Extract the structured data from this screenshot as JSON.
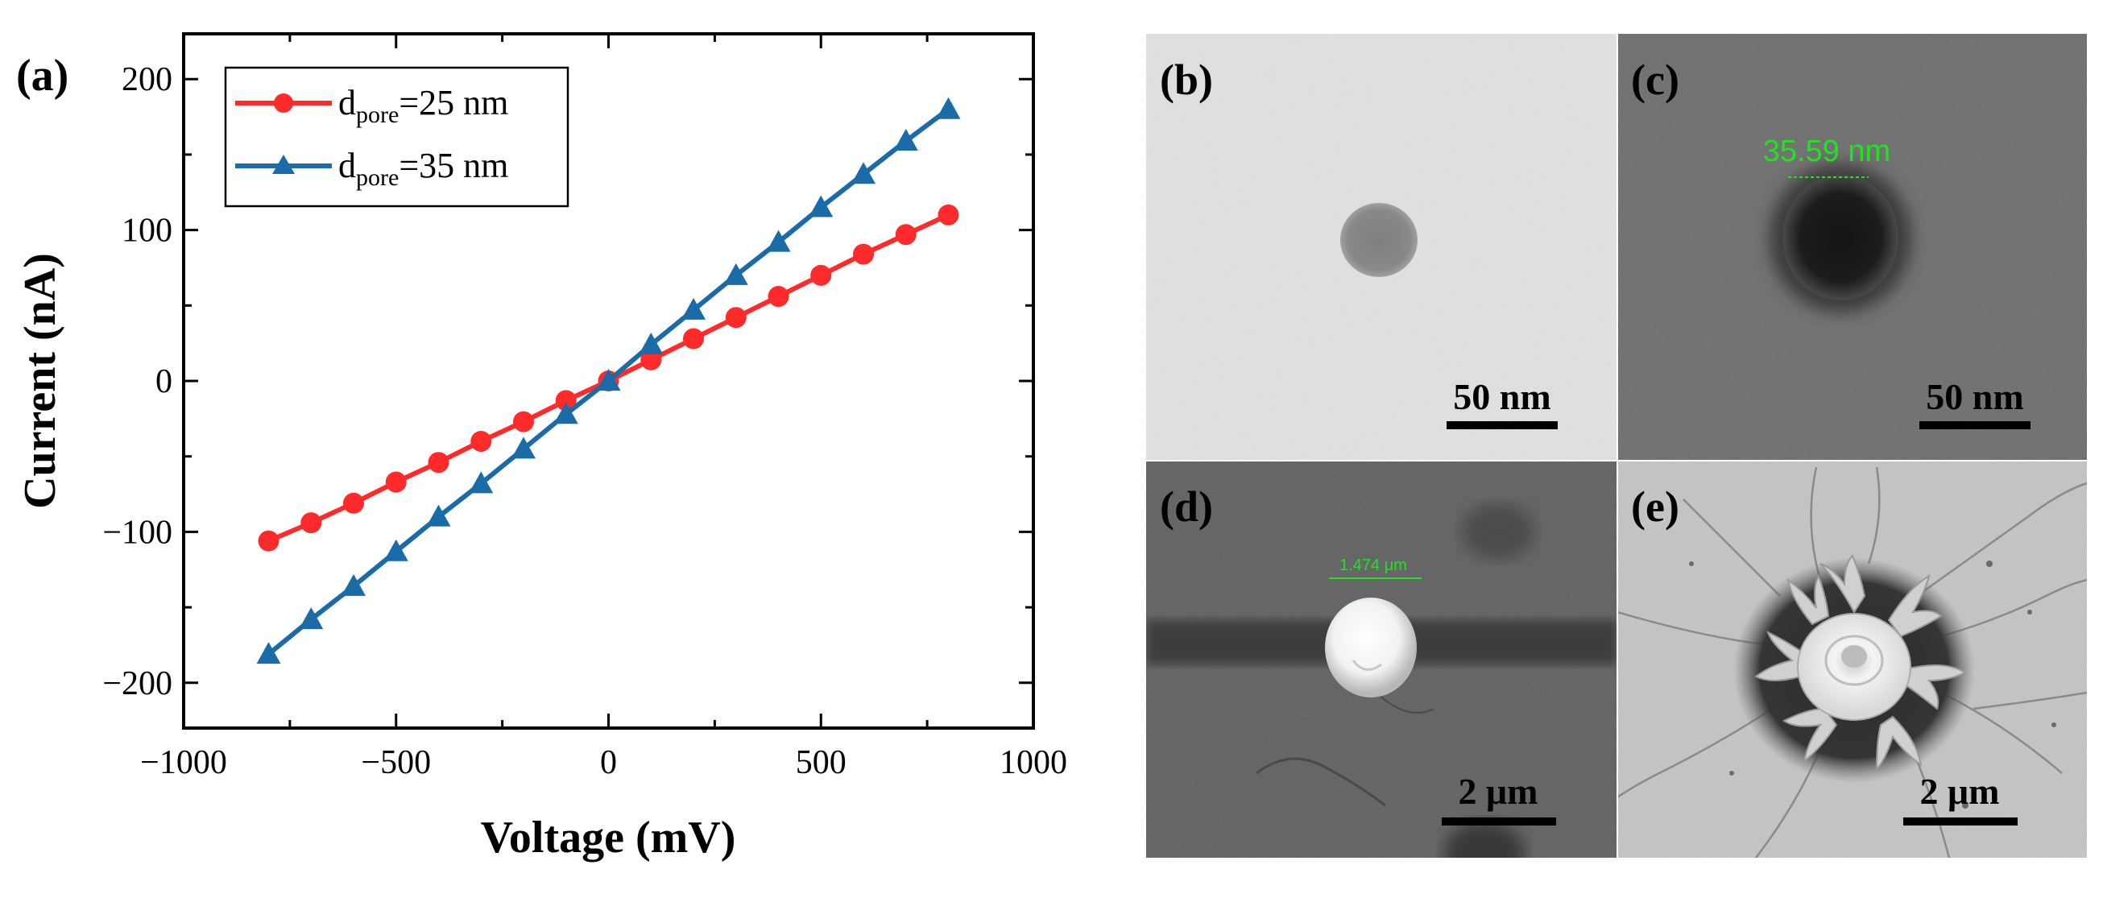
{
  "figure": {
    "panel_labels": [
      "(a)",
      "(b)",
      "(c)",
      "(d)",
      "(e)"
    ]
  },
  "chart_data": {
    "type": "line",
    "title": "",
    "xlabel": "Voltage (mV)",
    "ylabel": "Current (nA)",
    "xlim": [
      -1000,
      1000
    ],
    "ylim": [
      -230,
      230
    ],
    "xticks": [
      -1000,
      -500,
      0,
      500,
      1000
    ],
    "xtick_labels": [
      "−1000",
      "−500",
      "0",
      "500",
      "1000"
    ],
    "yticks": [
      -200,
      -100,
      0,
      100,
      200
    ],
    "ytick_labels": [
      "−200",
      "−100",
      "0",
      "100",
      "200"
    ],
    "grid": false,
    "legend_position": "top-left",
    "series": [
      {
        "name": "d_pore=25 nm",
        "label_main": "d",
        "label_sub": "pore",
        "label_rest": "=25 nm",
        "color": "#ff2a2a",
        "marker": "circle",
        "x": [
          -800,
          -700,
          -600,
          -500,
          -400,
          -300,
          -200,
          -100,
          0,
          100,
          200,
          300,
          400,
          500,
          600,
          700,
          800
        ],
        "y": [
          -106,
          -94,
          -81,
          -67,
          -54,
          -40,
          -27,
          -13,
          0,
          14,
          28,
          42,
          56,
          70,
          84,
          97,
          110
        ]
      },
      {
        "name": "d_pore=35 nm",
        "label_main": "d",
        "label_sub": "pore",
        "label_rest": "=35 nm",
        "color": "#1a6ba8",
        "marker": "triangle",
        "x": [
          -800,
          -700,
          -600,
          -500,
          -400,
          -300,
          -200,
          -100,
          0,
          100,
          200,
          300,
          400,
          500,
          600,
          700,
          800
        ],
        "y": [
          -181,
          -158,
          -136,
          -113,
          -90,
          -68,
          -45,
          -22,
          0,
          24,
          47,
          70,
          92,
          115,
          137,
          159,
          180
        ]
      }
    ]
  },
  "micrographs": {
    "b": {
      "scale_bar": "50 nm"
    },
    "c": {
      "scale_bar": "50 nm",
      "measurement": "35.59 nm"
    },
    "d": {
      "scale_bar": "2 μm",
      "measurement": "1.474 μm"
    },
    "e": {
      "scale_bar": "2 μm"
    }
  },
  "colors": {
    "panel_b_bg": "#e4e4e4",
    "panel_c_bg": "#6e6e6e",
    "panel_d_bg": "#5d5d5d",
    "panel_e_bg": "#c6c6c6",
    "measure_green": "#22e022"
  }
}
